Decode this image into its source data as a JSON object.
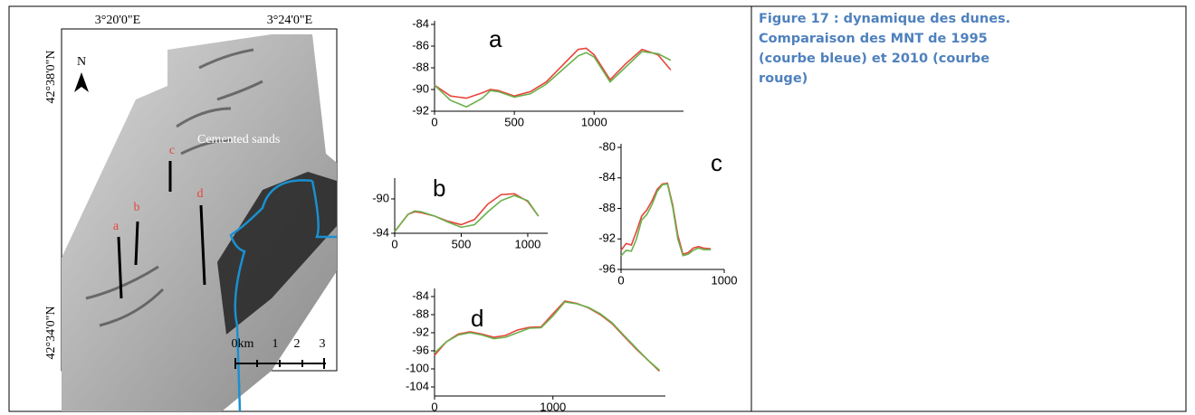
{
  "caption": "Figure 17 : dynamique des dunes. Comparaison des MNT de 1995 (courbe bleue) et 2010 (courbe rouge)",
  "map": {
    "x_labels": [
      "3°20'0\"E",
      "3°24'0\"E"
    ],
    "y_labels": [
      "42°38'0\"N",
      "42°34'0\"N"
    ],
    "north": "N",
    "profile_labels": [
      "a",
      "b",
      "c",
      "d"
    ],
    "annotation": "Cemented sands",
    "scale_labels": [
      "0km",
      "1",
      "2",
      "3"
    ]
  },
  "chart_data": [
    {
      "type": "line",
      "title": "a",
      "x": [
        0,
        100,
        200,
        300,
        350,
        400,
        500,
        600,
        700,
        800,
        900,
        950,
        1000,
        1100,
        1200,
        1300,
        1400,
        1480
      ],
      "series": [
        {
          "color": "#e8453c",
          "values": [
            -89.6,
            -90.6,
            -90.8,
            -90.3,
            -90,
            -90.1,
            -90.6,
            -90.2,
            -89.3,
            -87.8,
            -86.3,
            -86.2,
            -86.8,
            -89.1,
            -87.6,
            -86.3,
            -86.8,
            -88.2
          ]
        },
        {
          "color": "#6ab04c",
          "values": [
            -89.6,
            -91,
            -91.6,
            -90.8,
            -90.1,
            -90.2,
            -90.7,
            -90.4,
            -89.5,
            -88.2,
            -86.9,
            -86.6,
            -87,
            -89.3,
            -87.9,
            -86.5,
            -86.7,
            -87.3
          ]
        }
      ],
      "xlim": [
        0,
        1560
      ],
      "xticks": [
        0,
        500,
        1000
      ],
      "ylim": [
        -84,
        -92
      ],
      "yticks": [
        -84,
        -86,
        -88,
        -90,
        -92
      ]
    },
    {
      "type": "line",
      "title": "b",
      "x": [
        0,
        100,
        150,
        200,
        300,
        400,
        500,
        600,
        700,
        800,
        900,
        1000,
        1080
      ],
      "series": [
        {
          "color": "#e8453c",
          "values": [
            -93.8,
            -91.8,
            -91.5,
            -91.6,
            -92,
            -92.6,
            -93,
            -92.4,
            -90.6,
            -89.5,
            -89.4,
            -90.3,
            -92
          ]
        },
        {
          "color": "#6ab04c",
          "values": [
            -93.8,
            -91.8,
            -91.4,
            -91.5,
            -92,
            -92.7,
            -93.3,
            -93,
            -91.5,
            -90.2,
            -89.6,
            -90.2,
            -92
          ]
        }
      ],
      "xlim": [
        0,
        1150
      ],
      "xticks": [
        0,
        500,
        1000
      ],
      "ylim": [
        -88,
        -94
      ],
      "yticks": [
        -90,
        -94
      ]
    },
    {
      "type": "line",
      "title": "c",
      "x": [
        0,
        50,
        100,
        150,
        200,
        250,
        300,
        350,
        400,
        450,
        500,
        550,
        600,
        650,
        700,
        750,
        800,
        870
      ],
      "series": [
        {
          "color": "#e8453c",
          "values": [
            -93.5,
            -92.6,
            -92.8,
            -91,
            -89,
            -88.2,
            -87,
            -85.5,
            -84.8,
            -84.7,
            -87.5,
            -91.5,
            -94,
            -93.8,
            -93.2,
            -93,
            -93.2,
            -93.3
          ]
        },
        {
          "color": "#6ab04c",
          "values": [
            -94.2,
            -93.5,
            -93.6,
            -92,
            -89.5,
            -88.8,
            -87.5,
            -85.8,
            -84.9,
            -84.8,
            -87.8,
            -92,
            -94.2,
            -94,
            -93.5,
            -93.2,
            -93.4,
            -93.4
          ]
        }
      ],
      "xlim": [
        0,
        1000
      ],
      "xticks": [
        0,
        1000
      ],
      "ylim": [
        -80,
        -96
      ],
      "yticks": [
        -80,
        -84,
        -88,
        -92,
        -96
      ]
    },
    {
      "type": "line",
      "title": "d",
      "x": [
        0,
        100,
        200,
        300,
        400,
        500,
        600,
        700,
        800,
        900,
        1000,
        1100,
        1200,
        1300,
        1400,
        1500,
        1600,
        1700,
        1800,
        1900
      ],
      "series": [
        {
          "color": "#e8453c",
          "values": [
            -97,
            -94,
            -92.3,
            -91.8,
            -92.3,
            -93,
            -92.6,
            -91.4,
            -90.8,
            -90.7,
            -87.8,
            -85,
            -85.5,
            -86.5,
            -88,
            -90,
            -92.8,
            -95.5,
            -98,
            -100.5
          ]
        },
        {
          "color": "#6ab04c",
          "values": [
            -96.5,
            -94,
            -92.5,
            -92,
            -92.5,
            -93.3,
            -93,
            -92,
            -91,
            -90.9,
            -88.3,
            -85.2,
            -85.6,
            -86.4,
            -87.8,
            -89.8,
            -92.6,
            -95.3,
            -98,
            -100.3
          ]
        }
      ],
      "xlim": [
        0,
        1950
      ],
      "xticks": [
        0,
        1000
      ],
      "ylim": [
        -83,
        -106
      ],
      "yticks": [
        -84,
        -88,
        -92,
        -96,
        -100,
        -104
      ]
    }
  ]
}
